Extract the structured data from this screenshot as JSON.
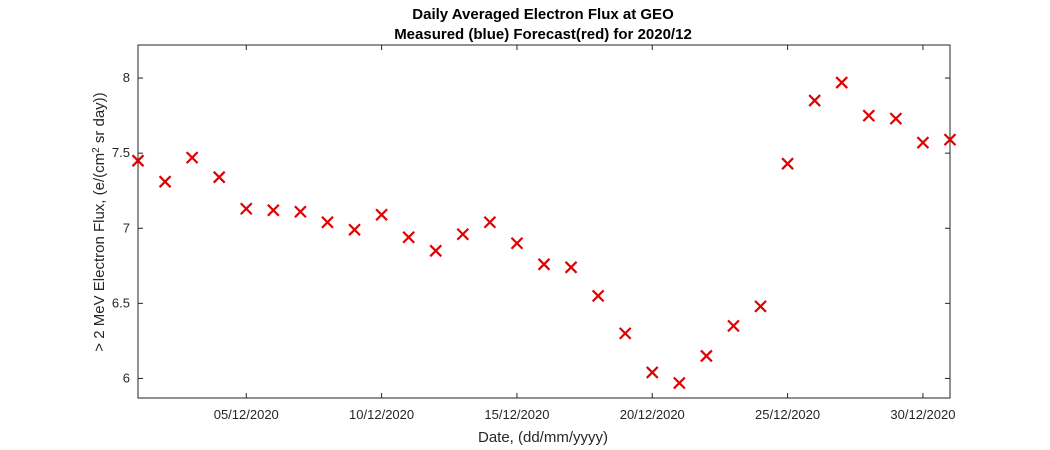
{
  "chart_data": {
    "type": "scatter",
    "title_line1": "Daily Averaged Electron Flux at GEO",
    "title_line2": "Measured (blue) Forecast(red) for 2020/12",
    "xlabel": "Date, (dd/mm/yyyy)",
    "ylabel_prefix": "> 2 MeV Electron Flux, (e/(cm",
    "ylabel_sup": "2",
    "ylabel_suffix": " sr day))",
    "xlim": [
      "2020-12-01",
      "2020-12-31"
    ],
    "ylim": [
      5.87,
      8.22
    ],
    "xtick_labels": [
      "05/12/2020",
      "10/12/2020",
      "15/12/2020",
      "20/12/2020",
      "25/12/2020",
      "30/12/2020"
    ],
    "xtick_dates": [
      "2020-12-05",
      "2020-12-10",
      "2020-12-15",
      "2020-12-20",
      "2020-12-25",
      "2020-12-30"
    ],
    "ytick_labels": [
      "6",
      "6.5",
      "7",
      "7.5",
      "8"
    ],
    "yticks": [
      6,
      6.5,
      7,
      7.5,
      8
    ],
    "grid": false,
    "series": [
      {
        "marker": "x",
        "color": "#e00000",
        "points": [
          {
            "x": "2020-12-01",
            "y": 7.45
          },
          {
            "x": "2020-12-02",
            "y": 7.31
          },
          {
            "x": "2020-12-03",
            "y": 7.47
          },
          {
            "x": "2020-12-04",
            "y": 7.34
          },
          {
            "x": "2020-12-05",
            "y": 7.13
          },
          {
            "x": "2020-12-06",
            "y": 7.12
          },
          {
            "x": "2020-12-07",
            "y": 7.11
          },
          {
            "x": "2020-12-08",
            "y": 7.04
          },
          {
            "x": "2020-12-09",
            "y": 6.99
          },
          {
            "x": "2020-12-10",
            "y": 7.09
          },
          {
            "x": "2020-12-11",
            "y": 6.94
          },
          {
            "x": "2020-12-12",
            "y": 6.85
          },
          {
            "x": "2020-12-13",
            "y": 6.96
          },
          {
            "x": "2020-12-14",
            "y": 7.04
          },
          {
            "x": "2020-12-15",
            "y": 6.9
          },
          {
            "x": "2020-12-16",
            "y": 6.76
          },
          {
            "x": "2020-12-17",
            "y": 6.74
          },
          {
            "x": "2020-12-18",
            "y": 6.55
          },
          {
            "x": "2020-12-19",
            "y": 6.3
          },
          {
            "x": "2020-12-20",
            "y": 6.04
          },
          {
            "x": "2020-12-21",
            "y": 5.97
          },
          {
            "x": "2020-12-22",
            "y": 6.15
          },
          {
            "x": "2020-12-23",
            "y": 6.35
          },
          {
            "x": "2020-12-24",
            "y": 6.48
          },
          {
            "x": "2020-12-25",
            "y": 7.43
          },
          {
            "x": "2020-12-26",
            "y": 7.85
          },
          {
            "x": "2020-12-27",
            "y": 7.97
          },
          {
            "x": "2020-12-28",
            "y": 7.75
          },
          {
            "x": "2020-12-29",
            "y": 7.73
          },
          {
            "x": "2020-12-30",
            "y": 7.57
          },
          {
            "x": "2020-12-31",
            "y": 7.59
          }
        ]
      }
    ]
  }
}
